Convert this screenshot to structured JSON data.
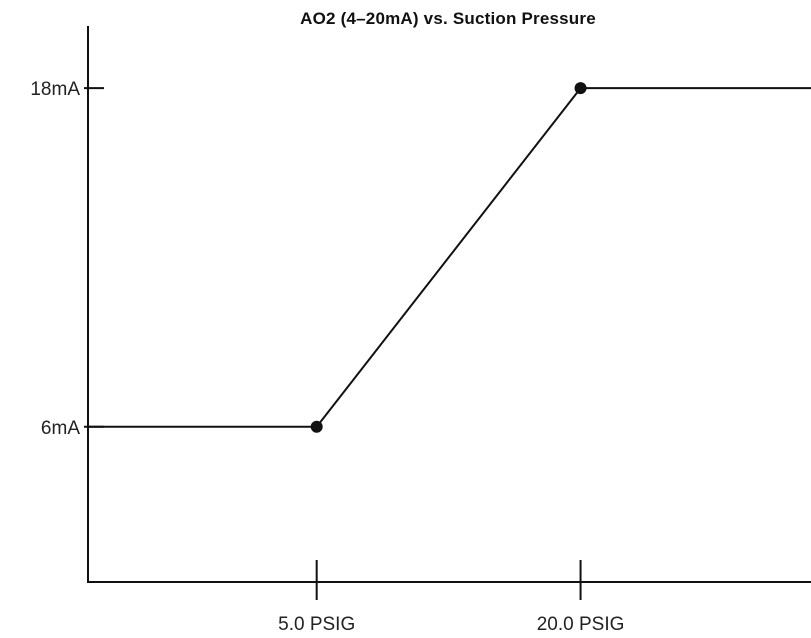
{
  "chart_data": {
    "type": "line",
    "title": "AO2 (4–20mA) vs. Suction Pressure",
    "xlabel": "",
    "ylabel": "",
    "x_ticks": [
      {
        "value": 5.0,
        "label": "5.0 PSIG"
      },
      {
        "value": 20.0,
        "label": "20.0 PSIG"
      }
    ],
    "y_ticks": [
      {
        "value": 18,
        "label": "18mA"
      },
      {
        "value": 6,
        "label": "6mA"
      }
    ],
    "xlim": [
      -8.0,
      33.1
    ],
    "ylim": [
      0.5,
      20.2
    ],
    "series": [
      {
        "points": [
          {
            "x": -8.0,
            "y": 6
          },
          {
            "x": 5.0,
            "y": 6
          },
          {
            "x": 20.0,
            "y": 18
          },
          {
            "x": 33.1,
            "y": 18
          }
        ],
        "markers": [
          {
            "x": 5.0,
            "y": 6
          },
          {
            "x": 20.0,
            "y": 18
          }
        ]
      }
    ],
    "grid": false,
    "legend": "none",
    "colors": {
      "line": "#111111",
      "axis": "#111111",
      "background": "#ffffff"
    }
  }
}
